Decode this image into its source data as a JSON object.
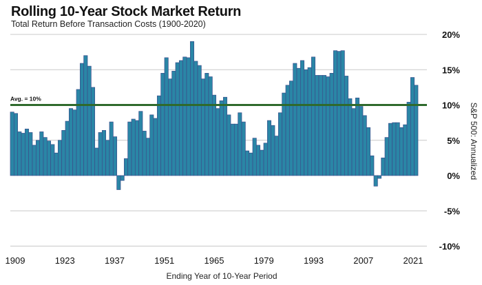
{
  "chart_data": {
    "type": "bar",
    "title": "Rolling 10-Year Stock Market Return",
    "subtitle": "Total Return Before Transaction Costs (1900-2020)",
    "xlabel": "Ending Year of 10-Year Period",
    "ylabel": "S&P 500: Annualized",
    "ylim": [
      -10,
      20
    ],
    "yticks": [
      20,
      15,
      10,
      5,
      0,
      -5,
      -10
    ],
    "ytick_labels": [
      "20%",
      "15%",
      "10%",
      "5%",
      "0%",
      "-5%",
      "-10%"
    ],
    "xtick_labels": [
      "1909",
      "1923",
      "1937",
      "1951",
      "1965",
      "1979",
      "1993",
      "2007",
      "2021"
    ],
    "average": {
      "value": 10,
      "label": "Avg. = 10%"
    },
    "grid": true,
    "colors": {
      "bar": "#2a86a6",
      "bar_edge": "#3b4f8c",
      "avg_line": "#2f6a2c",
      "grid": "#c8c8c8"
    },
    "values": [
      9.0,
      8.8,
      6.2,
      6.0,
      6.6,
      6.1,
      4.3,
      5.0,
      6.2,
      5.4,
      4.9,
      4.4,
      3.2,
      5.0,
      6.4,
      7.7,
      9.5,
      9.3,
      12.2,
      15.9,
      17.0,
      15.5,
      12.5,
      3.9,
      6.1,
      6.4,
      5.0,
      7.6,
      5.5,
      -2.0,
      -0.7,
      2.4,
      7.6,
      8.0,
      7.8,
      9.1,
      6.3,
      5.3,
      8.6,
      8.1,
      11.3,
      14.5,
      16.7,
      13.7,
      14.8,
      16.0,
      16.3,
      16.8,
      16.7,
      19.0,
      16.2,
      15.6,
      13.7,
      14.5,
      14.0,
      11.4,
      9.5,
      10.6,
      11.1,
      8.6,
      7.3,
      7.3,
      8.9,
      7.6,
      3.5,
      3.2,
      5.3,
      4.3,
      3.6,
      4.6,
      7.8,
      7.1,
      5.6,
      8.9,
      11.7,
      12.8,
      13.4,
      15.9,
      15.2,
      16.3,
      15.0,
      15.3,
      16.8,
      14.2,
      14.2,
      14.2,
      14.0,
      14.5,
      17.7,
      17.6,
      17.7,
      14.1,
      10.9,
      9.5,
      11.0,
      9.8,
      8.5,
      6.8,
      2.8,
      -1.5,
      -0.4,
      2.5,
      5.4,
      7.4,
      7.5,
      7.5,
      6.8,
      7.2,
      10.4,
      13.9,
      12.8
    ]
  }
}
